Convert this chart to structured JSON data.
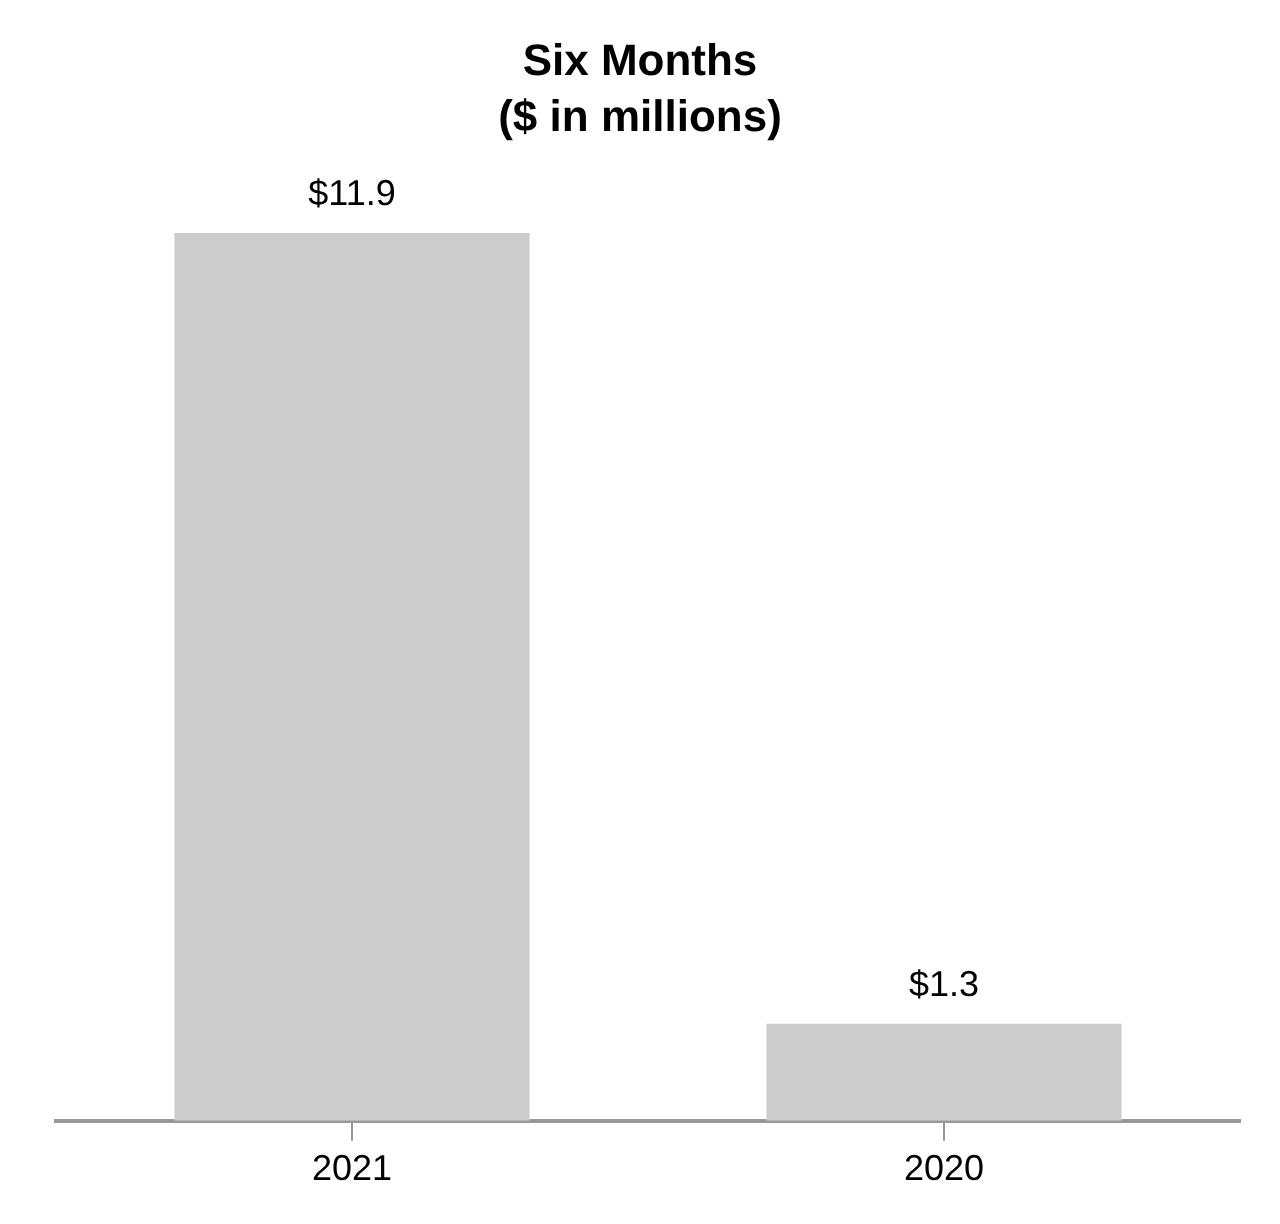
{
  "chart_data": {
    "type": "bar",
    "title": "Six Months",
    "subtitle": "($ in millions)",
    "categories": [
      "2021",
      "2020"
    ],
    "values": [
      11.9,
      1.3
    ],
    "value_labels": [
      "$11.9",
      "$1.3"
    ],
    "color": "#cccccc",
    "relative": false,
    "grid": false,
    "legend": false
  }
}
